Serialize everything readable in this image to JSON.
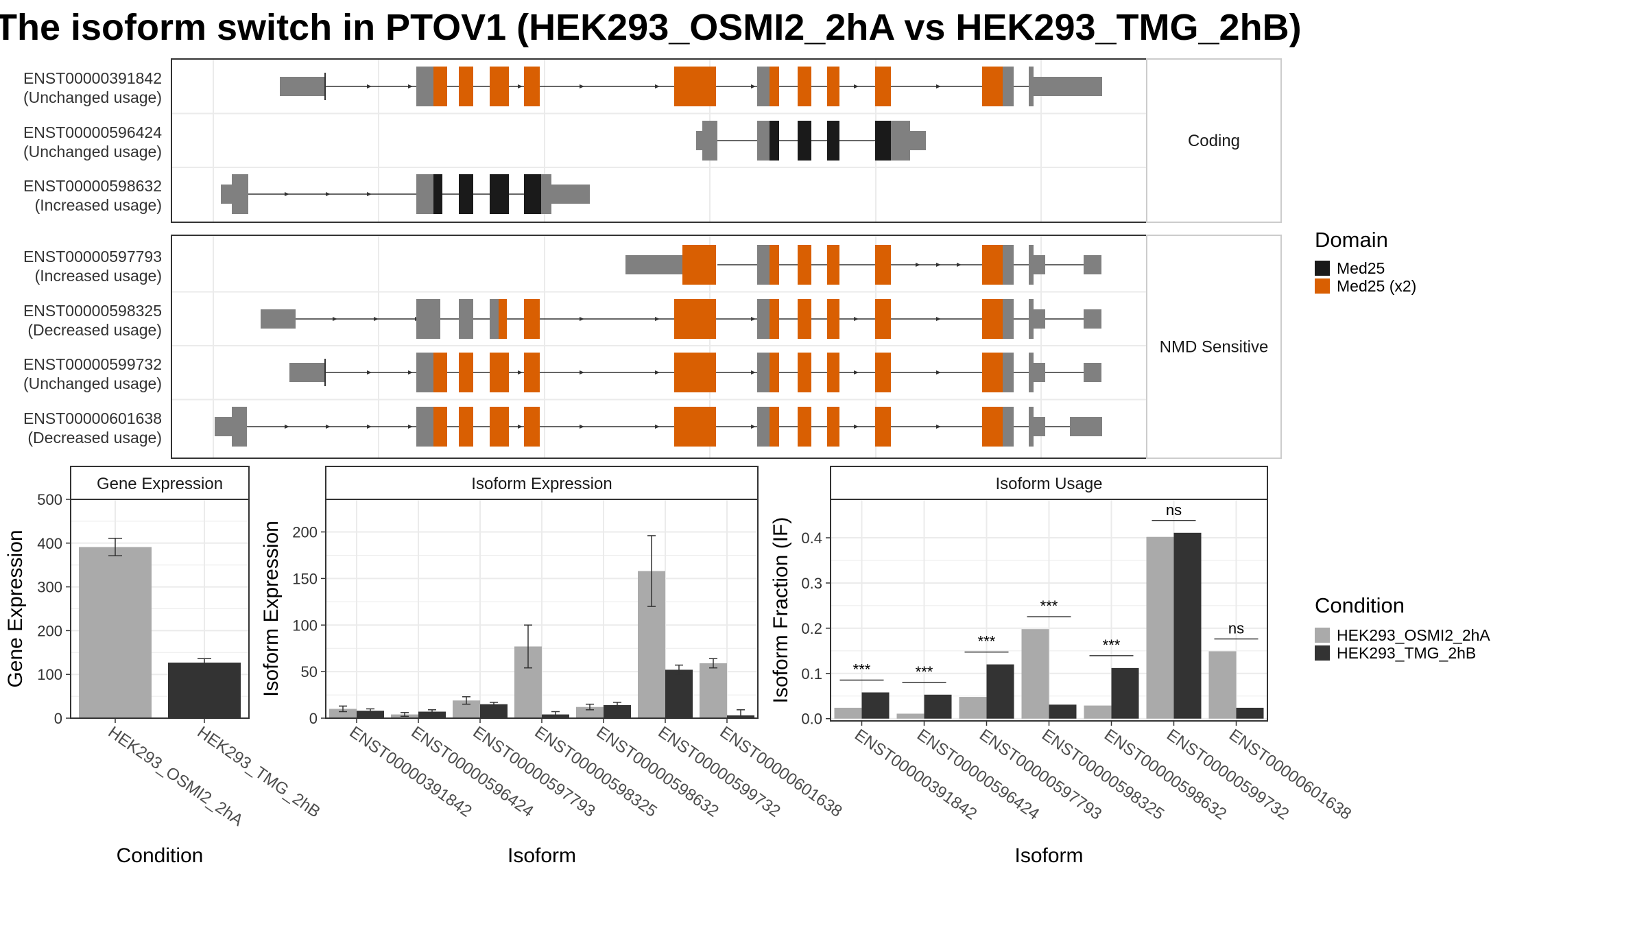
{
  "title": "The isoform switch in PTOV1 (HEK293_OSMI2_2hA vs HEK293_TMG_2hB)",
  "colors": {
    "utr": "#808080",
    "med25": "#1a1a1a",
    "med25x2": "#d95f02",
    "cond1": "#aaaaaa",
    "cond2": "#333333",
    "grid": "#ebebeb",
    "panel_border": "#333333",
    "strip_border": "#cccccc"
  },
  "structure": {
    "groups": [
      {
        "label": "Coding",
        "isoforms": [
          {
            "id": "ENST00000391842",
            "status": "(Unchanged usage)"
          },
          {
            "id": "ENST00000596424",
            "status": "(Unchanged usage)"
          },
          {
            "id": "ENST00000598632",
            "status": "(Increased usage)"
          }
        ]
      },
      {
        "label": "NMD Sensitive",
        "isoforms": [
          {
            "id": "ENST00000597793",
            "status": "(Increased usage)"
          },
          {
            "id": "ENST00000598325",
            "status": "(Decreased usage)"
          },
          {
            "id": "ENST00000599732",
            "status": "(Unchanged usage)"
          },
          {
            "id": "ENST00000601638",
            "status": "(Decreased usage)"
          }
        ]
      }
    ]
  },
  "legend_domain": {
    "title": "Domain",
    "items": [
      {
        "label": "Med25",
        "color": "#1a1a1a"
      },
      {
        "label": "Med25 (x2)",
        "color": "#d95f02"
      }
    ]
  },
  "legend_condition": {
    "title": "Condition",
    "items": [
      {
        "label": "HEK293_OSMI2_2hA",
        "color": "#aaaaaa"
      },
      {
        "label": "HEK293_TMG_2hB",
        "color": "#333333"
      }
    ]
  },
  "chart_data": [
    {
      "type": "bar",
      "title": "Gene Expression",
      "xlabel": "Condition",
      "ylabel": "Gene Expression",
      "categories": [
        "HEK293_OSMI2_2hA",
        "HEK293_TMG_2hB"
      ],
      "values": [
        391,
        127
      ],
      "errors": [
        20,
        9
      ],
      "ylim": [
        0,
        500
      ],
      "yticks": [
        0,
        100,
        200,
        300,
        400,
        500
      ],
      "grid": true
    },
    {
      "type": "bar",
      "title": "Isoform Expression",
      "xlabel": "Isoform",
      "ylabel": "Isoform Expression",
      "categories": [
        "ENST00000391842",
        "ENST00000596424",
        "ENST00000597793",
        "ENST00000598325",
        "ENST00000598632",
        "ENST00000599732",
        "ENST00000601638"
      ],
      "series": [
        {
          "name": "HEK293_OSMI2_2hA",
          "values": [
            10,
            4,
            19,
            77,
            12,
            158,
            59
          ],
          "errors": [
            3,
            2,
            4,
            23,
            3,
            38,
            5
          ]
        },
        {
          "name": "HEK293_TMG_2hB",
          "values": [
            8,
            7,
            15,
            4,
            14,
            52,
            3
          ],
          "errors": [
            2,
            2,
            2,
            3,
            3,
            5,
            6
          ]
        }
      ],
      "ylim": [
        0,
        235
      ],
      "yticks": [
        0,
        50,
        100,
        150,
        200
      ],
      "grid": true
    },
    {
      "type": "bar",
      "title": "Isoform Usage",
      "xlabel": "Isoform",
      "ylabel": "Isoform Fraction (IF)",
      "categories": [
        "ENST00000391842",
        "ENST00000596424",
        "ENST00000597793",
        "ENST00000598325",
        "ENST00000598632",
        "ENST00000599732",
        "ENST00000601638"
      ],
      "series": [
        {
          "name": "HEK293_OSMI2_2hA",
          "values": [
            0.024,
            0.011,
            0.048,
            0.198,
            0.029,
            0.402,
            0.149
          ]
        },
        {
          "name": "HEK293_TMG_2hB",
          "values": [
            0.058,
            0.053,
            0.12,
            0.031,
            0.112,
            0.411,
            0.024
          ]
        }
      ],
      "significance": [
        "***",
        "***",
        "***",
        "***",
        "***",
        "ns",
        "ns"
      ],
      "ylim": [
        -0.005,
        0.485
      ],
      "yticks": [
        0.0,
        0.1,
        0.2,
        0.3,
        0.4
      ],
      "ytick_labels": [
        "0.0",
        "0.1",
        "0.2",
        "0.3",
        "0.4"
      ],
      "grid": true
    }
  ]
}
